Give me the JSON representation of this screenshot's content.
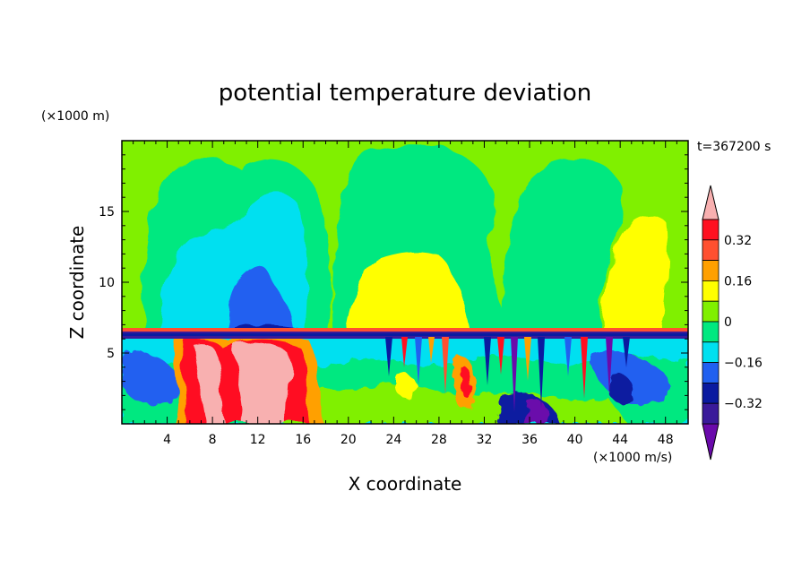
{
  "chart_data": {
    "type": "heatmap",
    "title": "potential temperature deviation",
    "time_label": "t=367200 s",
    "xlabel": "X coordinate",
    "ylabel": "Z coordinate",
    "x_unit": "(×1000 m/s)",
    "y_unit": "(×1000 m)",
    "xlim": [
      0,
      50
    ],
    "ylim": [
      0,
      20
    ],
    "x_ticks": [
      4,
      8,
      12,
      16,
      20,
      24,
      28,
      32,
      36,
      40,
      44,
      48
    ],
    "y_ticks": [
      5,
      10,
      15
    ],
    "x_tick_labels": [
      "4",
      "8",
      "12",
      "16",
      "20",
      "24",
      "28",
      "32",
      "36",
      "40",
      "44",
      "48"
    ],
    "y_tick_labels": [
      "5",
      "10",
      "15"
    ],
    "colorbar": {
      "levels": [
        -0.4,
        -0.32,
        -0.24,
        -0.16,
        -0.08,
        0,
        0.08,
        0.16,
        0.24,
        0.32,
        0.4
      ],
      "tick_labels": [
        "0.32",
        "0.16",
        "0",
        "−0.16",
        "−0.32"
      ],
      "tick_values": [
        0.32,
        0.16,
        0,
        -0.16,
        -0.32
      ],
      "colors": [
        "#6a0aab",
        "#3a1a9a",
        "#0a1aa0",
        "#2060f0",
        "#00e0f0",
        "#00e880",
        "#80f000",
        "#ffff00",
        "#ffa000",
        "#ff5030",
        "#ff1020",
        "#f8b0b0"
      ],
      "extend": "both"
    },
    "regions": [
      {
        "name": "upper-background",
        "value": 0.04
      },
      {
        "name": "cyan-column-left",
        "value": -0.12
      },
      {
        "name": "blue-core-left",
        "value": -0.2
      },
      {
        "name": "green-column-mid",
        "value": -0.04
      },
      {
        "name": "yellow-patch-mid",
        "value": 0.12
      },
      {
        "name": "green-column-right",
        "value": -0.04
      },
      {
        "name": "yellow-patch-right",
        "value": 0.12
      },
      {
        "name": "warm-plume-lower-left",
        "value": 0.44
      }
    ]
  }
}
